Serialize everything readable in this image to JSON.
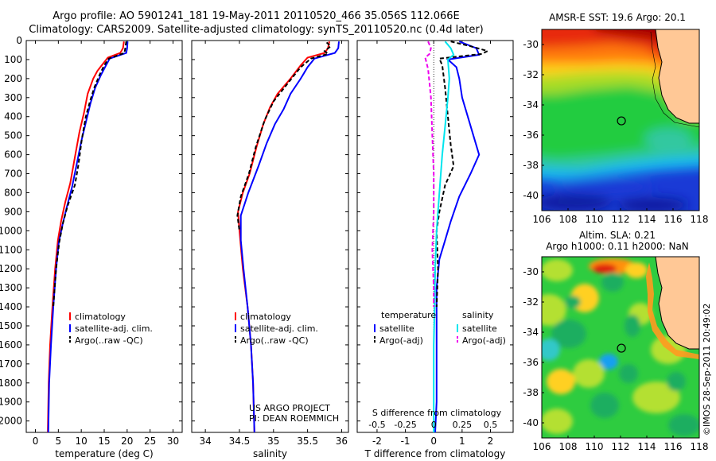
{
  "header": {
    "line1": "Argo profile: AO 5901241_181 19-May-2011 20110520_466 35.056S 112.066E",
    "line2": "Climatology: CARS2009. Satellite-adjusted climatology: synTS_20110520.nc (0.4d later)"
  },
  "depth_ticks": [
    0,
    100,
    200,
    300,
    400,
    500,
    600,
    700,
    800,
    900,
    1000,
    1100,
    1200,
    1300,
    1400,
    1500,
    1600,
    1700,
    1800,
    1900,
    2000
  ],
  "colors": {
    "climatology": "#ff0000",
    "satellite": "#0000ff",
    "argo": "#000000",
    "sat_salinity": "#00e5ee",
    "argo_salinity": "#ee00ee",
    "land": "#ffc896"
  },
  "chart_data": [
    {
      "type": "line",
      "id": "temperature",
      "xlabel": "temperature (deg C)",
      "xlim": [
        -2,
        32
      ],
      "ylim": [
        2060,
        0
      ],
      "xticks": [
        0,
        5,
        10,
        15,
        20,
        25,
        30
      ],
      "legend": [
        "climatology",
        "satellite-adj. clim.",
        "Argo(..raw -QC)"
      ],
      "series": [
        {
          "name": "climatology",
          "color": "#ff0000",
          "dash": "",
          "points": [
            [
              19.3,
              5
            ],
            [
              19.1,
              40
            ],
            [
              18.5,
              65
            ],
            [
              15.8,
              90
            ],
            [
              14.8,
              120
            ],
            [
              13.5,
              160
            ],
            [
              12.6,
              200
            ],
            [
              11.4,
              280
            ],
            [
              10.6,
              380
            ],
            [
              9.6,
              480
            ],
            [
              8.7,
              600
            ],
            [
              7.6,
              750
            ],
            [
              6.5,
              850
            ],
            [
              5.6,
              950
            ],
            [
              4.9,
              1050
            ],
            [
              4.3,
              1200
            ],
            [
              3.7,
              1400
            ],
            [
              3.2,
              1600
            ],
            [
              2.9,
              1800
            ],
            [
              2.7,
              2060
            ]
          ]
        },
        {
          "name": "satellite-adj. clim.",
          "color": "#0000ff",
          "dash": "",
          "points": [
            [
              20.1,
              5
            ],
            [
              20.0,
              40
            ],
            [
              19.8,
              65
            ],
            [
              16.2,
              95
            ],
            [
              15.4,
              130
            ],
            [
              14.3,
              180
            ],
            [
              13.0,
              250
            ],
            [
              12.0,
              330
            ],
            [
              11.1,
              420
            ],
            [
              10.0,
              530
            ],
            [
              9.0,
              650
            ],
            [
              8.0,
              770
            ],
            [
              6.8,
              880
            ],
            [
              5.9,
              970
            ],
            [
              5.1,
              1060
            ],
            [
              4.5,
              1200
            ],
            [
              3.9,
              1400
            ],
            [
              3.4,
              1600
            ],
            [
              3.0,
              1800
            ],
            [
              2.8,
              2060
            ]
          ]
        },
        {
          "name": "Argo(..raw -QC)",
          "color": "#000000",
          "dash": "5,3",
          "points": [
            [
              19.8,
              5
            ],
            [
              19.6,
              40
            ],
            [
              19.4,
              65
            ],
            [
              16.0,
              95
            ],
            [
              15.0,
              130
            ],
            [
              14.0,
              180
            ],
            [
              12.8,
              250
            ],
            [
              11.9,
              320
            ],
            [
              11.0,
              400
            ],
            [
              10.1,
              520
            ],
            [
              9.4,
              650
            ],
            [
              8.6,
              760
            ],
            [
              7.0,
              870
            ],
            [
              6.0,
              960
            ],
            [
              5.2,
              1060
            ],
            [
              4.5,
              1200
            ],
            [
              3.9,
              1400
            ]
          ]
        }
      ]
    },
    {
      "type": "line",
      "id": "salinity",
      "xlabel": "salinity",
      "xlim": [
        33.8,
        36.1
      ],
      "ylim": [
        2060,
        0
      ],
      "xticks": [
        34,
        34.5,
        35,
        35.5,
        36
      ],
      "legend": [
        "climatology",
        "satellite-adj. clim.",
        "Argo(..raw -QC)"
      ],
      "annotation": [
        "US ARGO PROJECT",
        "PI: DEAN ROEMMICH"
      ],
      "series": [
        {
          "name": "climatology",
          "color": "#ff0000",
          "dash": "",
          "points": [
            [
              35.82,
              5
            ],
            [
              35.8,
              40
            ],
            [
              35.75,
              65
            ],
            [
              35.5,
              90
            ],
            [
              35.4,
              130
            ],
            [
              35.25,
              200
            ],
            [
              35.06,
              280
            ],
            [
              34.95,
              350
            ],
            [
              34.85,
              440
            ],
            [
              34.75,
              560
            ],
            [
              34.65,
              700
            ],
            [
              34.55,
              800
            ],
            [
              34.48,
              900
            ],
            [
              34.5,
              1000
            ],
            [
              34.55,
              1200
            ],
            [
              34.62,
              1400
            ],
            [
              34.67,
              1600
            ],
            [
              34.7,
              1800
            ],
            [
              34.72,
              2060
            ]
          ]
        },
        {
          "name": "satellite-adj. clim.",
          "color": "#0000ff",
          "dash": "",
          "points": [
            [
              35.96,
              5
            ],
            [
              35.95,
              40
            ],
            [
              35.9,
              65
            ],
            [
              35.6,
              95
            ],
            [
              35.5,
              140
            ],
            [
              35.4,
              200
            ],
            [
              35.25,
              280
            ],
            [
              35.15,
              360
            ],
            [
              35.02,
              440
            ],
            [
              34.9,
              540
            ],
            [
              34.78,
              660
            ],
            [
              34.63,
              800
            ],
            [
              34.52,
              920
            ],
            [
              34.52,
              1050
            ],
            [
              34.56,
              1200
            ],
            [
              34.62,
              1400
            ],
            [
              34.67,
              1600
            ],
            [
              34.7,
              1800
            ],
            [
              34.72,
              2060
            ]
          ]
        },
        {
          "name": "Argo(..raw -QC)",
          "color": "#000000",
          "dash": "5,3",
          "points": [
            [
              35.78,
              10
            ],
            [
              35.84,
              30
            ],
            [
              35.75,
              55
            ],
            [
              35.8,
              70
            ],
            [
              35.55,
              95
            ],
            [
              35.4,
              140
            ],
            [
              35.22,
              220
            ],
            [
              35.0,
              320
            ],
            [
              34.87,
              420
            ],
            [
              34.74,
              560
            ],
            [
              34.64,
              700
            ],
            [
              34.52,
              820
            ],
            [
              34.47,
              920
            ],
            [
              34.5,
              1000
            ]
          ]
        }
      ]
    },
    {
      "type": "line",
      "id": "differences",
      "xlabel": "T difference from climatology",
      "xlabel_top": "S difference from climatology",
      "xlim": [
        -2.7,
        2.8
      ],
      "ylim": [
        2060,
        0
      ],
      "xticks": [
        -2,
        -1,
        0,
        1,
        2
      ],
      "xticklabels_top": [
        "-0.5",
        "-0.25",
        "0",
        "0.25",
        "0.5"
      ],
      "xticks_top": [
        -2,
        -1,
        0,
        1,
        2
      ],
      "legend_left_title": "temperature",
      "legend_right_title": "salinity",
      "legend": [
        "satellite",
        "Argo(-adj)",
        "satellite",
        "Argo(-adj)"
      ],
      "series": [
        {
          "name": "satellite",
          "color": "#0000ff",
          "dash": "",
          "kind": "temperature",
          "points": [
            [
              0.9,
              5
            ],
            [
              1.5,
              40
            ],
            [
              1.6,
              75
            ],
            [
              0.5,
              100
            ],
            [
              0.8,
              140
            ],
            [
              0.9,
              200
            ],
            [
              1.0,
              300
            ],
            [
              1.2,
              400
            ],
            [
              1.4,
              500
            ],
            [
              1.6,
              600
            ],
            [
              1.3,
              700
            ],
            [
              0.9,
              820
            ],
            [
              0.6,
              950
            ],
            [
              0.4,
              1050
            ],
            [
              0.2,
              1150
            ],
            [
              0.1,
              1300
            ],
            [
              0.1,
              1600
            ],
            [
              0.1,
              1900
            ],
            [
              0.05,
              2060
            ]
          ]
        },
        {
          "name": "Argo(-adj)",
          "color": "#000000",
          "dash": "5,3",
          "kind": "temperature",
          "points": [
            [
              0.6,
              5
            ],
            [
              1.3,
              30
            ],
            [
              1.9,
              55
            ],
            [
              1.7,
              70
            ],
            [
              0.2,
              95
            ],
            [
              0.3,
              130
            ],
            [
              0.4,
              250
            ],
            [
              0.5,
              400
            ],
            [
              0.6,
              550
            ],
            [
              0.7,
              660
            ],
            [
              0.4,
              760
            ],
            [
              0.2,
              900
            ],
            [
              0.1,
              1000
            ],
            [
              0.15,
              1200
            ],
            [
              0.1,
              1400
            ]
          ]
        },
        {
          "name": "satellite",
          "color": "#00e5ee",
          "dash": "",
          "kind": "salinity",
          "points": [
            [
              0.4,
              5
            ],
            [
              0.6,
              40
            ],
            [
              0.7,
              75
            ],
            [
              0.5,
              100
            ],
            [
              0.55,
              200
            ],
            [
              0.5,
              300
            ],
            [
              0.4,
              450
            ],
            [
              0.3,
              600
            ],
            [
              0.2,
              800
            ],
            [
              0.1,
              1000
            ],
            [
              0.05,
              1200
            ],
            [
              0.03,
              1400
            ],
            [
              0.0,
              1600
            ],
            [
              0.0,
              1900
            ],
            [
              0.0,
              2060
            ]
          ]
        },
        {
          "name": "Argo(-adj)",
          "color": "#ee00ee",
          "dash": "5,3",
          "kind": "salinity",
          "points": [
            [
              -0.2,
              5
            ],
            [
              -0.1,
              40
            ],
            [
              -0.15,
              70
            ],
            [
              -0.3,
              90
            ],
            [
              -0.2,
              150
            ],
            [
              -0.1,
              300
            ],
            [
              -0.05,
              500
            ],
            [
              0.0,
              700
            ],
            [
              0.0,
              900
            ],
            [
              -0.05,
              1100
            ],
            [
              0.0,
              1300
            ],
            [
              0.0,
              1400
            ]
          ]
        }
      ]
    },
    {
      "type": "heatmap",
      "id": "sst-map",
      "title": "AMSR-E SST: 19.6 Argo: 20.1",
      "xlim": [
        106,
        118
      ],
      "ylim": [
        -41,
        -29
      ],
      "xticks": [
        106,
        108,
        110,
        112,
        114,
        116,
        118
      ],
      "yticks": [
        -30,
        -32,
        -34,
        -36,
        -38,
        -40
      ],
      "marker": [
        112.066,
        -35.056
      ]
    },
    {
      "type": "heatmap",
      "id": "sla-map",
      "title_lines": [
        "Altim. SLA: 0.21",
        "Argo h1000: 0.11 h2000: NaN"
      ],
      "xlim": [
        106,
        118
      ],
      "ylim": [
        -41,
        -29
      ],
      "xticks": [
        106,
        108,
        110,
        112,
        114,
        116,
        118
      ],
      "yticks": [
        -30,
        -32,
        -34,
        -36,
        -38,
        -40
      ],
      "marker": [
        112.066,
        -35.056
      ]
    }
  ],
  "footer": {
    "stamp": "©IMOS 28-Sep-2011 20:49:02"
  }
}
